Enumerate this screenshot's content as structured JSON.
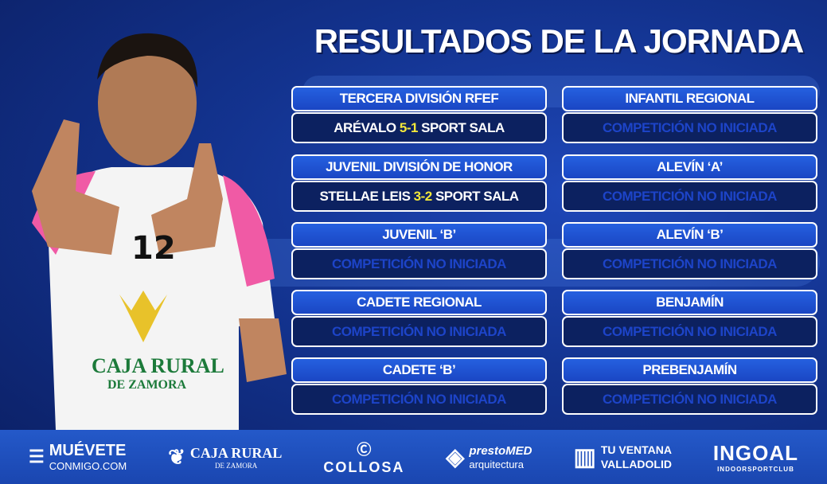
{
  "title": "RESULTADOS DE LA JORNADA",
  "colors": {
    "header": "#1f53d4",
    "result": "#0c2160",
    "score": "#f3e83a",
    "pending": "#1d44c8"
  },
  "left": [
    {
      "category": "TERCERA DIVISIÓN RFEF",
      "home": "ARÉVALO",
      "score": "5-1",
      "away": "SPORT SALA"
    },
    {
      "category": "JUVENIL DIVISIÓN DE HONOR",
      "home": "STELLAE LEIS",
      "score": "3-2",
      "away": "SPORT SALA"
    },
    {
      "category": "JUVENIL ‘B’",
      "status": "COMPETICIÓN NO INICIADA"
    },
    {
      "category": "CADETE REGIONAL",
      "status": "COMPETICIÓN NO INICIADA"
    },
    {
      "category": "CADETE ‘B’",
      "status": "COMPETICIÓN NO INICIADA"
    }
  ],
  "right": [
    {
      "category": "INFANTIL REGIONAL",
      "status": "COMPETICIÓN NO INICIADA"
    },
    {
      "category": "ALEVÍN ‘A’",
      "status": "COMPETICIÓN NO INICIADA"
    },
    {
      "category": "ALEVÍN ‘B’",
      "status": "COMPETICIÓN NO INICIADA"
    },
    {
      "category": "BENJAMÍN",
      "status": "COMPETICIÓN NO INICIADA"
    },
    {
      "category": "PREBENJAMÍN",
      "status": "COMPETICIÓN NO INICIADA"
    }
  ],
  "player": {
    "number": "12",
    "shirt_sponsor": "CAJA RURAL",
    "shirt_sponsor_sub": "DE ZAMORA"
  },
  "sponsors": [
    {
      "name": "MUÉVETE",
      "sub": "CONMIGO.COM"
    },
    {
      "name": "CAJA RURAL",
      "sub": "DE ZAMORA"
    },
    {
      "name": "COLLOSA"
    },
    {
      "name": "prestoMED",
      "sub": "arquitectura"
    },
    {
      "name": "TU VENTANA",
      "sub": "VALLADOLID"
    },
    {
      "name": "INGOAL",
      "sub": "INDOORSPORTCLUB"
    }
  ]
}
